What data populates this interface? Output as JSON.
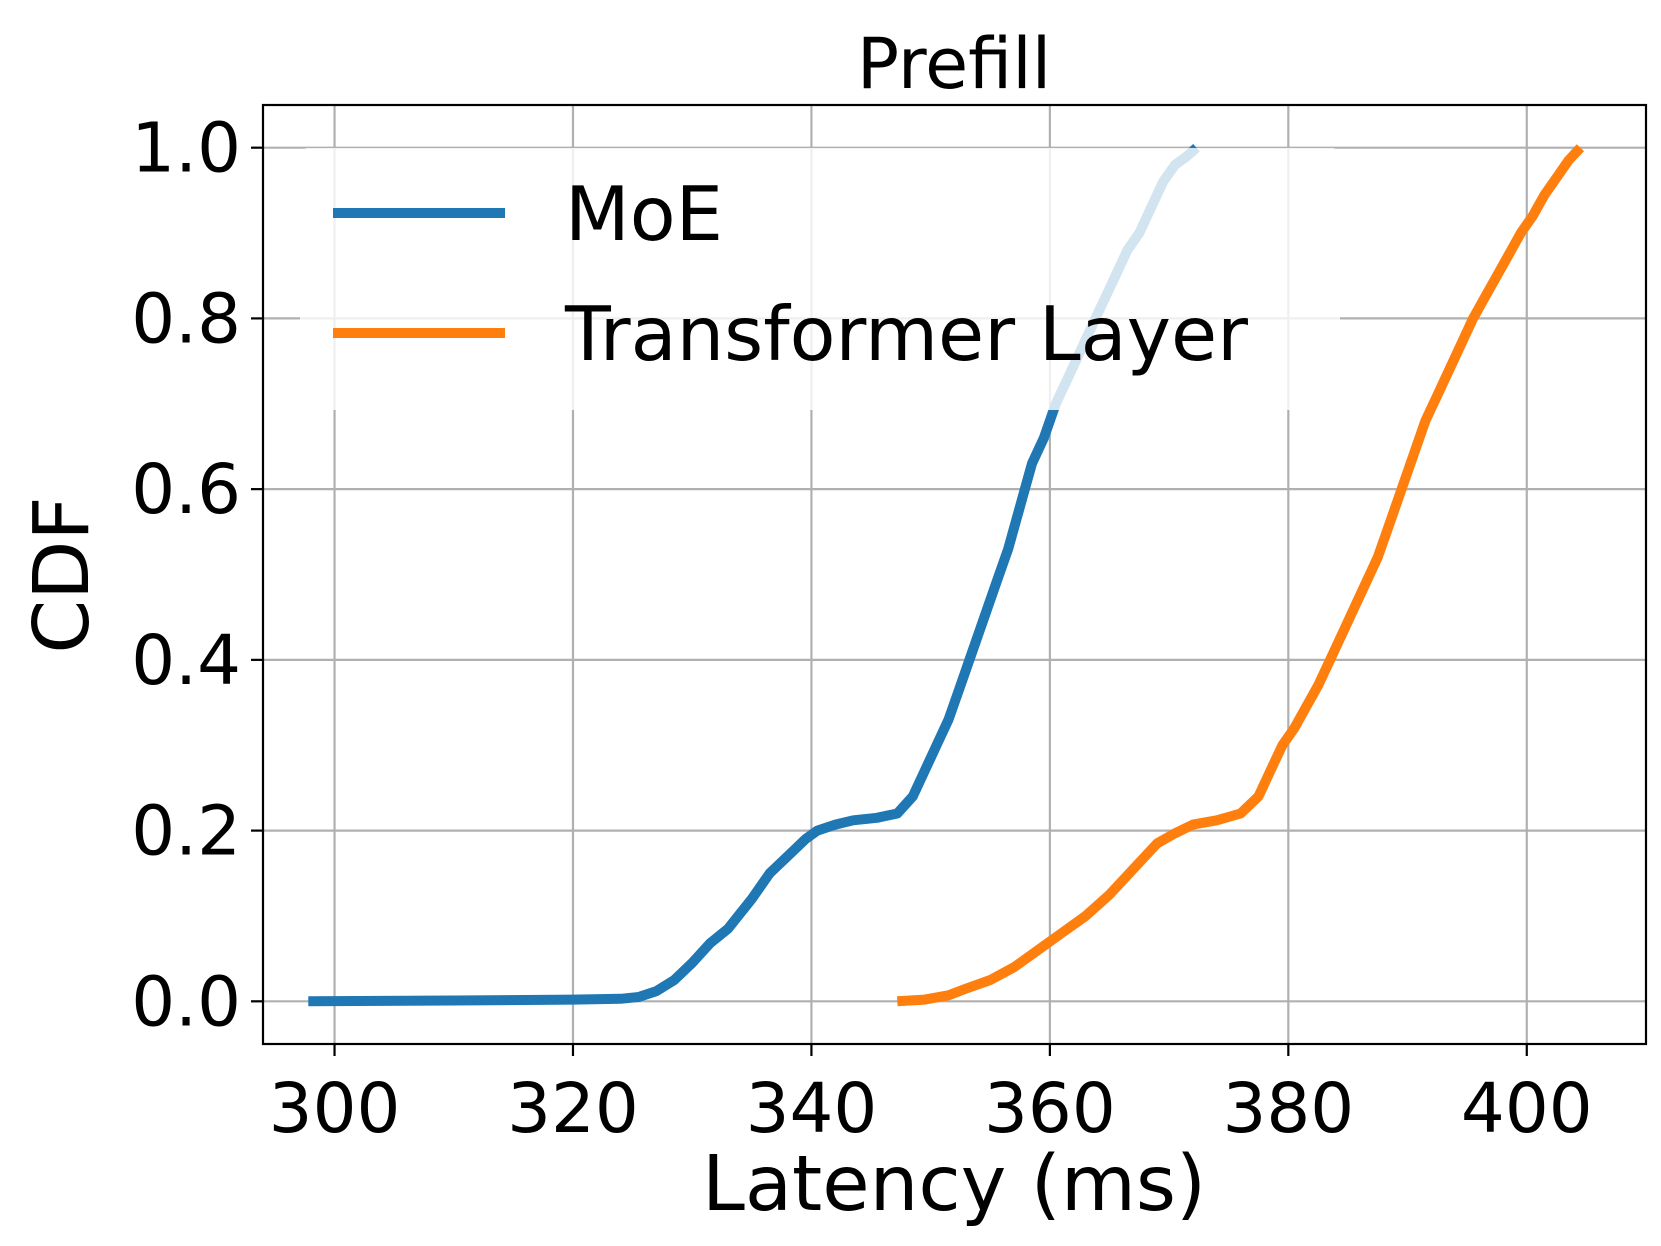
{
  "chart_data": {
    "type": "line",
    "title": "Prefill",
    "xlabel": "Latency (ms)",
    "ylabel": "CDF",
    "xlim": [
      294,
      410
    ],
    "ylim": [
      -0.05,
      1.05
    ],
    "xticks": [
      300,
      320,
      340,
      360,
      380,
      400
    ],
    "yticks": [
      0.0,
      0.2,
      0.4,
      0.6,
      0.8,
      1.0
    ],
    "xtick_labels": [
      "300",
      "320",
      "340",
      "360",
      "380",
      "400"
    ],
    "ytick_labels": [
      "0.0",
      "0.2",
      "0.4",
      "0.6",
      "0.8",
      "1.0"
    ],
    "grid": true,
    "legend_position": "upper-left",
    "series": [
      {
        "name": "MoE",
        "color": "#1f77b4",
        "x": [
          297.8,
          310,
          320,
          324,
          325.5,
          327,
          328.5,
          330,
          331.5,
          333,
          335,
          336.5,
          338,
          339.5,
          340.5,
          342,
          343.5,
          345.5,
          347.2,
          348.5,
          349.5,
          350.5,
          351.5,
          352.5,
          353.5,
          354.5,
          355.5,
          356.5,
          357.5,
          358.5,
          359.5,
          360.5,
          361.5,
          362.5,
          363.5,
          364.5,
          365.5,
          366.5,
          367.5,
          368.5,
          369.5,
          370.5,
          371.5,
          372.3
        ],
        "y": [
          0.0,
          0.001,
          0.002,
          0.003,
          0.005,
          0.012,
          0.025,
          0.045,
          0.068,
          0.085,
          0.12,
          0.15,
          0.17,
          0.19,
          0.2,
          0.207,
          0.212,
          0.215,
          0.22,
          0.24,
          0.27,
          0.3,
          0.33,
          0.37,
          0.41,
          0.45,
          0.49,
          0.53,
          0.58,
          0.63,
          0.66,
          0.7,
          0.73,
          0.76,
          0.79,
          0.82,
          0.85,
          0.88,
          0.9,
          0.93,
          0.96,
          0.98,
          0.99,
          1.0
        ]
      },
      {
        "name": "Transformer Layer",
        "color": "#ff7f0e",
        "x": [
          347.2,
          349.5,
          351.5,
          353,
          355,
          357,
          359,
          361,
          363,
          365,
          367,
          369,
          370.5,
          372,
          374,
          376,
          377.5,
          378.5,
          379.5,
          380.5,
          381.5,
          382.5,
          383.5,
          384.5,
          385.5,
          386.5,
          387.5,
          388.5,
          389.5,
          390.5,
          391.5,
          392.5,
          393.5,
          394.5,
          395.5,
          396.5,
          397.5,
          398.5,
          399.5,
          400.5,
          401.5,
          402.5,
          403.5,
          404.5
        ],
        "y": [
          0.0,
          0.002,
          0.007,
          0.015,
          0.025,
          0.04,
          0.06,
          0.08,
          0.1,
          0.125,
          0.155,
          0.185,
          0.197,
          0.207,
          0.212,
          0.22,
          0.24,
          0.27,
          0.3,
          0.32,
          0.345,
          0.37,
          0.4,
          0.43,
          0.46,
          0.49,
          0.52,
          0.56,
          0.6,
          0.64,
          0.68,
          0.71,
          0.74,
          0.77,
          0.8,
          0.825,
          0.85,
          0.875,
          0.9,
          0.92,
          0.945,
          0.965,
          0.985,
          1.0
        ]
      }
    ]
  }
}
